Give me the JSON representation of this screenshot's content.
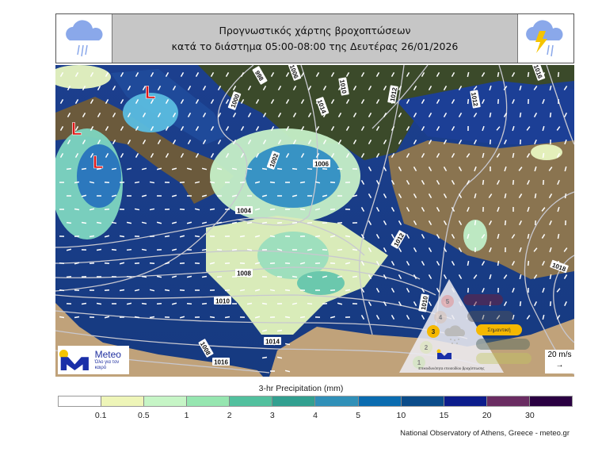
{
  "header": {
    "title_line1": "Προγνωστικός χάρτης βροχοπτώσεων",
    "title_line2": "κατά το διάστημα 05:00-08:00 της Δευτέρας 26/01/2026",
    "left_icon": "rain-cloud-icon",
    "right_icon": "thunderstorm-cloud-icon"
  },
  "map": {
    "low_pressure_label": "L",
    "isobars": [
      "998",
      "1000",
      "1002",
      "1004",
      "1006",
      "1006",
      "1008",
      "1008",
      "1010",
      "1010",
      "1010",
      "1012",
      "1012",
      "1012",
      "1014",
      "1014",
      "1016",
      "1016",
      "1018"
    ],
    "wind_scale": {
      "value": "20 m/s",
      "arrow": "→"
    }
  },
  "logo": {
    "brand": "Meteo",
    "slogan": "Όλο για τον καιρό"
  },
  "risk_scale": {
    "levels": [
      "5",
      "4",
      "3",
      "2",
      "1"
    ],
    "active_level": "3",
    "active_label": "Σημαντική",
    "caption": "Επικινδυνότητα επεισοδίου βροχόπτωσης",
    "colors": [
      "#e58a8a",
      "#d9c0b0",
      "#f5b800",
      "#d8e6b0",
      "#c8e6b0"
    ]
  },
  "colorbar": {
    "title": "3-hr Precipitation (mm)",
    "ticks": [
      "0.1",
      "0.5",
      "1",
      "2",
      "3",
      "4",
      "5",
      "10",
      "15",
      "20",
      "30"
    ],
    "colors": [
      "#ffffff",
      "#eef5b8",
      "#c6f5c6",
      "#96e6b0",
      "#52c09e",
      "#32a090",
      "#3090b8",
      "#0a6cb0",
      "#0b4c8a",
      "#0c1c8c",
      "#6a2c62",
      "#2a0042"
    ]
  },
  "credit": "National Observatory of Athens, Greece - meteo.gr"
}
